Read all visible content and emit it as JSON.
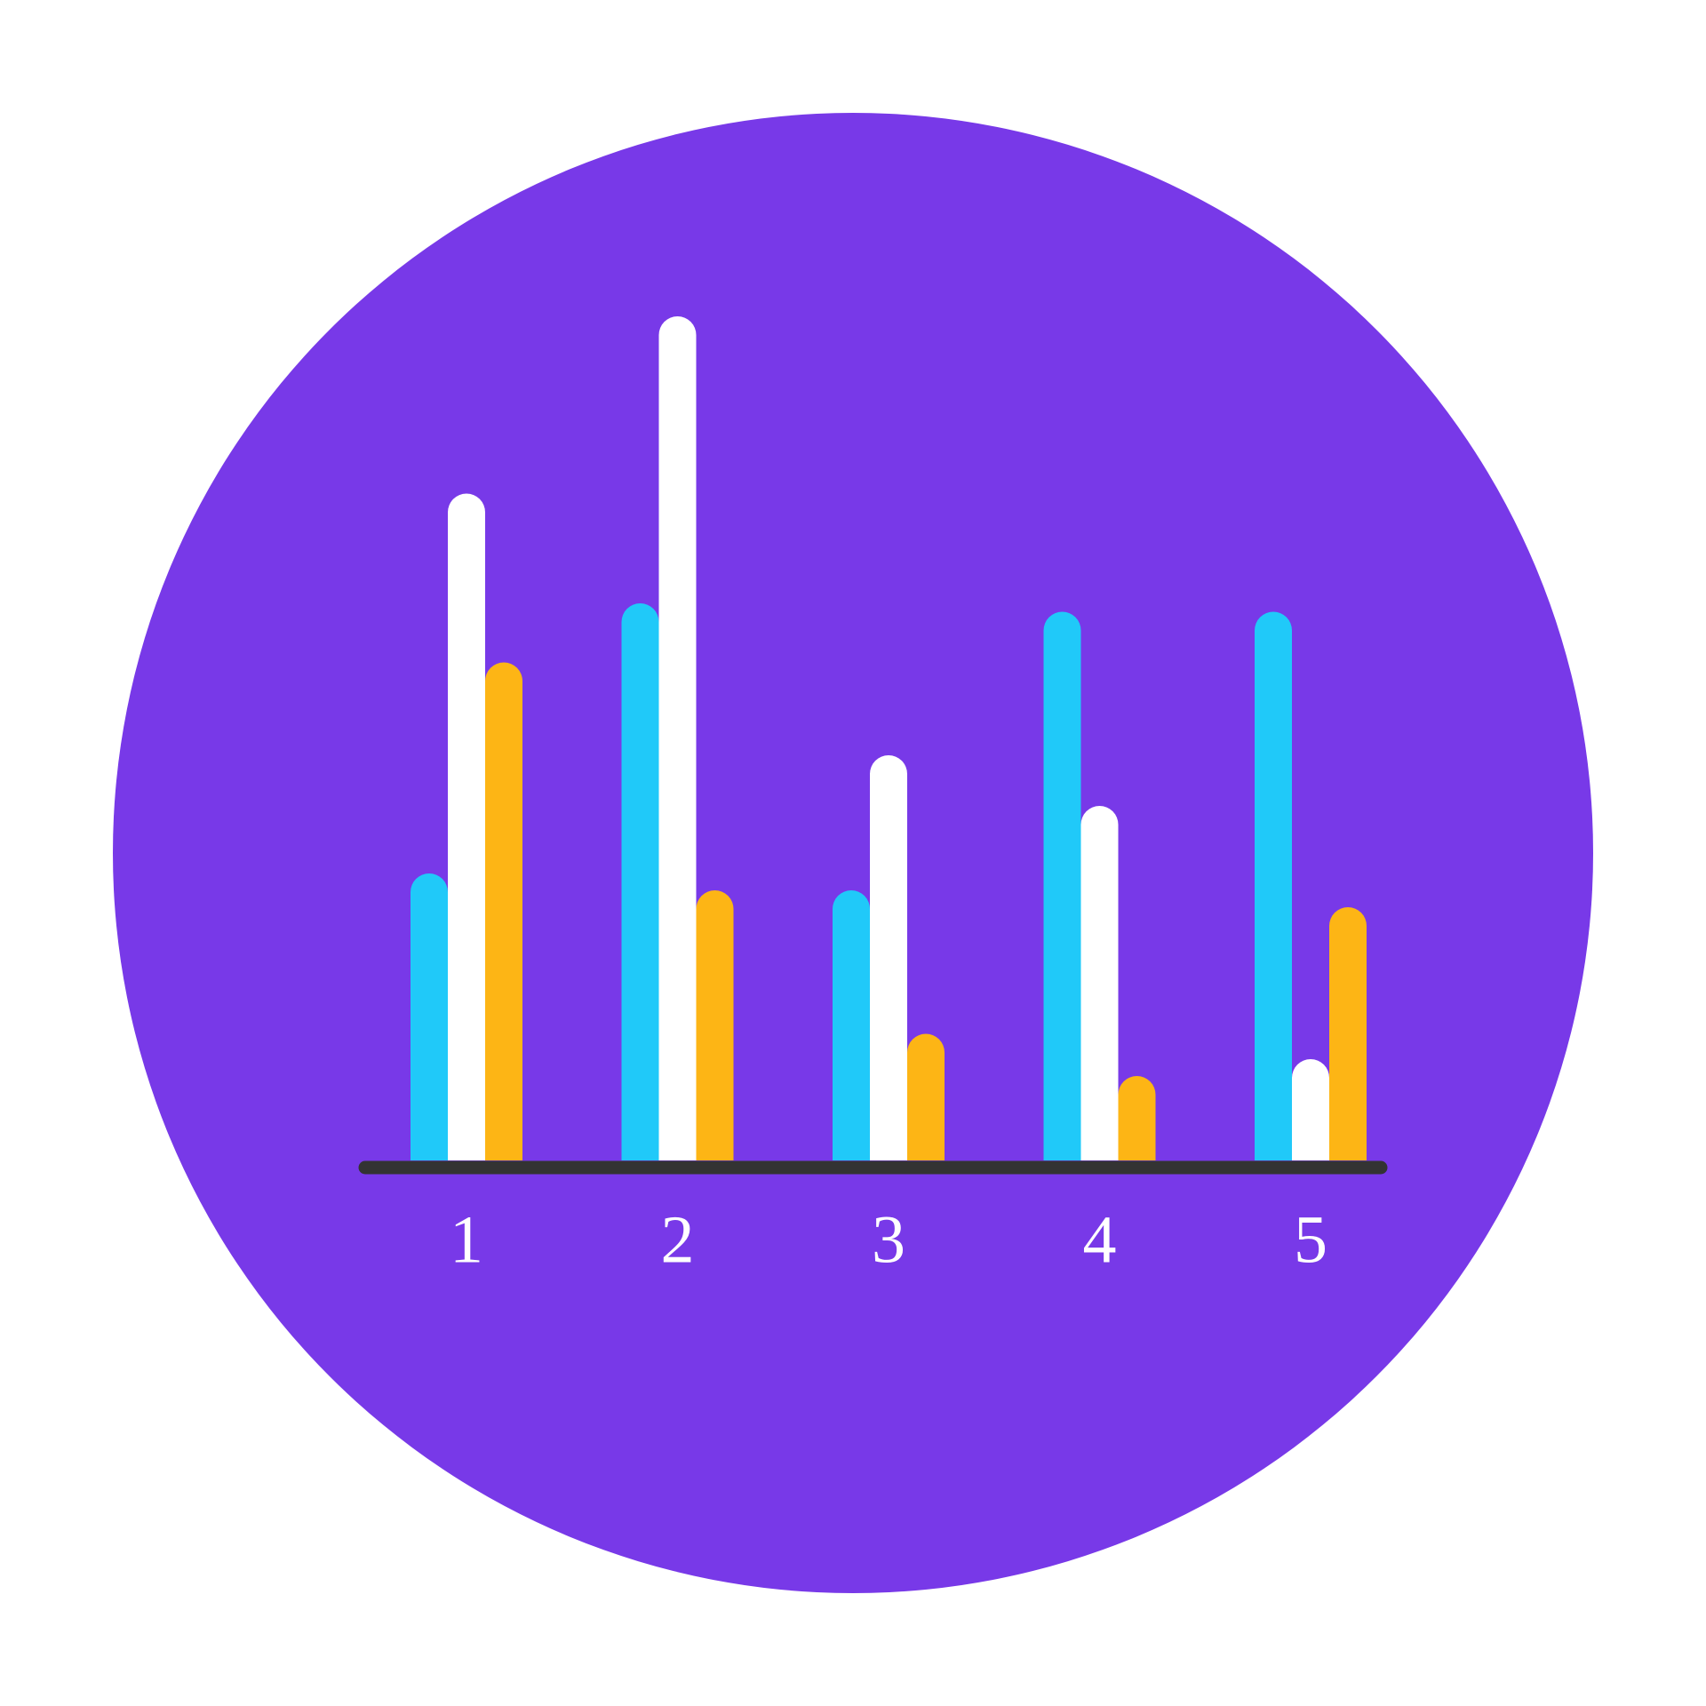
{
  "chart_data": {
    "type": "bar",
    "categories": [
      "1",
      "2",
      "3",
      "4",
      "5"
    ],
    "series": [
      {
        "color": "#20c9f9",
        "values": [
          34,
          66,
          32,
          65,
          65
        ]
      },
      {
        "color": "#ffffff",
        "values": [
          79,
          100,
          48,
          42,
          12
        ]
      },
      {
        "color": "#fdb515",
        "values": [
          59,
          32,
          15,
          10,
          30
        ]
      }
    ],
    "ylim": [
      0,
      100
    ],
    "background_color": "#7839e8"
  }
}
